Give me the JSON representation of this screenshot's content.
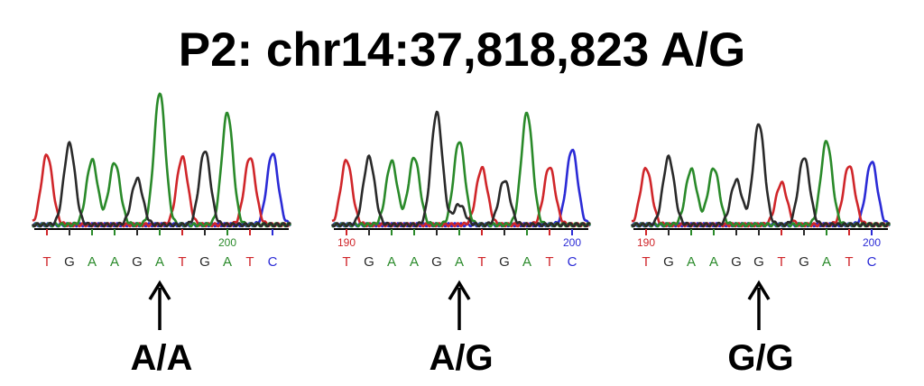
{
  "title": "P2: chr14:37,818,823 A/G",
  "colors": {
    "T": "#d0262a",
    "G": "#2a2a2a",
    "A": "#2a8a2a",
    "C": "#2b2bd6",
    "baseline": "#000000"
  },
  "panels": [
    {
      "genotype": "A/A",
      "bases": [
        "T",
        "G",
        "A",
        "A",
        "G",
        "A",
        "T",
        "G",
        "A",
        "T",
        "C"
      ],
      "tick_labels": [
        {
          "text": "200",
          "base_index": 8,
          "color_base": "A"
        }
      ],
      "peaks": [
        {
          "base": "T",
          "height": 0.52
        },
        {
          "base": "G",
          "height": 0.6
        },
        {
          "base": "A",
          "height": 0.48
        },
        {
          "base": "A",
          "height": 0.46
        },
        {
          "base": "G",
          "height": 0.34
        },
        {
          "base": "A",
          "height": 0.98
        },
        {
          "base": "T",
          "height": 0.5
        },
        {
          "base": "G",
          "height": 0.55
        },
        {
          "base": "A",
          "height": 0.83
        },
        {
          "base": "T",
          "height": 0.5
        },
        {
          "base": "C",
          "height": 0.53
        }
      ],
      "secondary_peaks": []
    },
    {
      "genotype": "A/G",
      "bases": [
        "T",
        "G",
        "A",
        "A",
        "G",
        "A",
        "T",
        "G",
        "A",
        "T",
        "C"
      ],
      "tick_labels": [
        {
          "text": "190",
          "base_index": 0,
          "color_base": "T"
        },
        {
          "text": "200",
          "base_index": 10,
          "color_base": "C"
        }
      ],
      "peaks": [
        {
          "base": "T",
          "height": 0.48
        },
        {
          "base": "G",
          "height": 0.5
        },
        {
          "base": "A",
          "height": 0.47
        },
        {
          "base": "A",
          "height": 0.5
        },
        {
          "base": "G",
          "height": 0.83
        },
        {
          "base": "A",
          "height": 0.62
        },
        {
          "base": "T",
          "height": 0.42
        },
        {
          "base": "G",
          "height": 0.33
        },
        {
          "base": "A",
          "height": 0.83
        },
        {
          "base": "T",
          "height": 0.43
        },
        {
          "base": "C",
          "height": 0.56
        }
      ],
      "secondary_peaks": [
        {
          "base": "G",
          "position": 5,
          "height": 0.15
        }
      ]
    },
    {
      "genotype": "G/G",
      "bases": [
        "T",
        "G",
        "A",
        "A",
        "G",
        "G",
        "T",
        "G",
        "A",
        "T",
        "C"
      ],
      "tick_labels": [
        {
          "text": "190",
          "base_index": 0,
          "color_base": "T"
        },
        {
          "text": "200",
          "base_index": 10,
          "color_base": "C"
        }
      ],
      "peaks": [
        {
          "base": "T",
          "height": 0.42
        },
        {
          "base": "G",
          "height": 0.5
        },
        {
          "base": "A",
          "height": 0.41
        },
        {
          "base": "A",
          "height": 0.42
        },
        {
          "base": "G",
          "height": 0.33
        },
        {
          "base": "G",
          "height": 0.75
        },
        {
          "base": "T",
          "height": 0.31
        },
        {
          "base": "G",
          "height": 0.5
        },
        {
          "base": "A",
          "height": 0.62
        },
        {
          "base": "T",
          "height": 0.44
        },
        {
          "base": "C",
          "height": 0.47
        }
      ],
      "secondary_peaks": []
    }
  ],
  "arrow_base_index": 5
}
